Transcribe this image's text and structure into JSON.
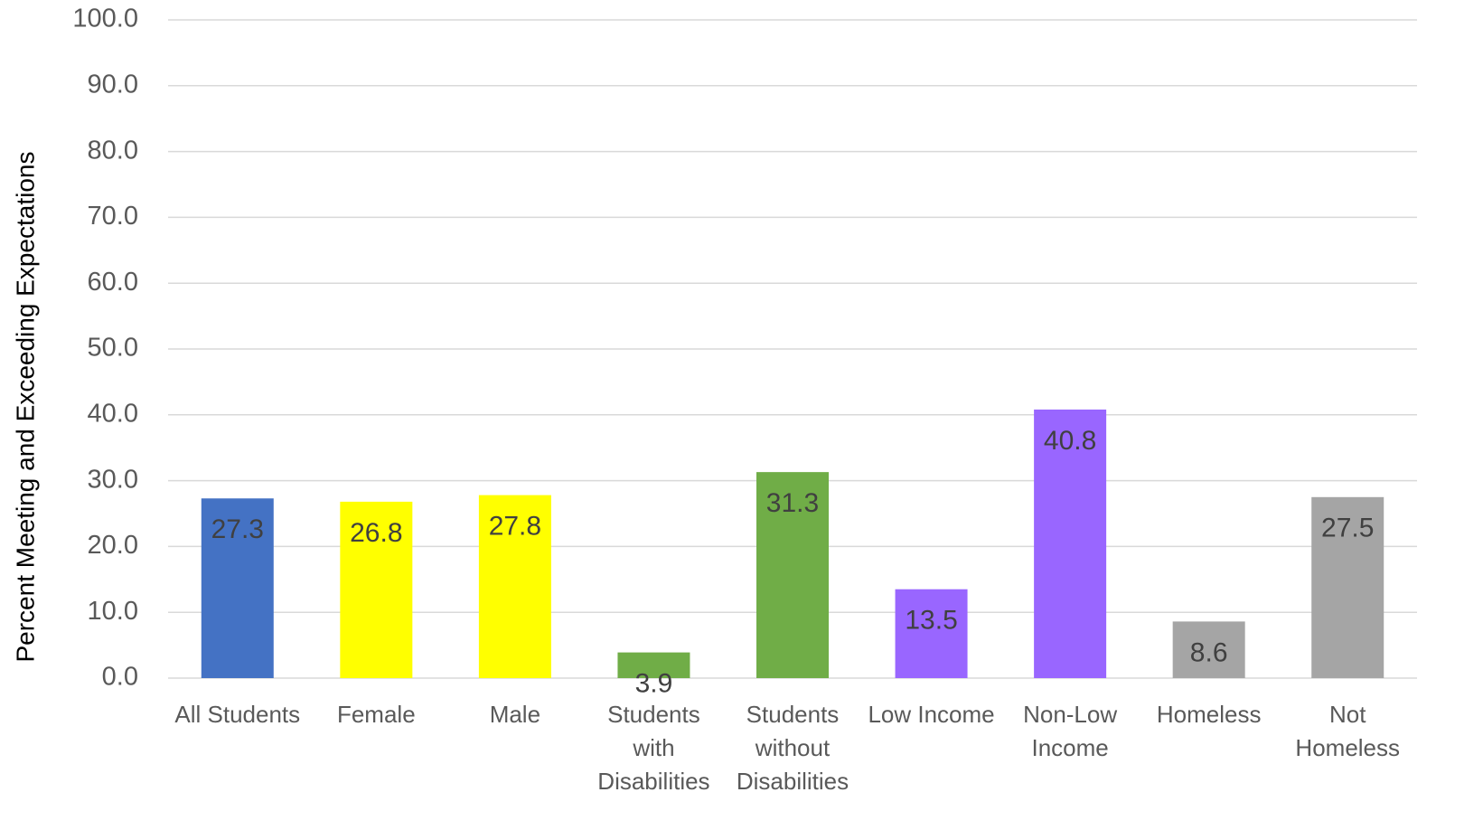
{
  "chart_data": {
    "type": "bar",
    "y_axis_label": "Percent Meeting and Exceeding  Expectations",
    "categories": [
      "All Students",
      "Female",
      "Male",
      "Students with Disabilities",
      "Students without Disabilities",
      "Low Income",
      "Non-Low Income",
      "Homeless",
      "Not Homeless"
    ],
    "values": [
      27.3,
      26.8,
      27.8,
      3.9,
      31.3,
      13.5,
      40.8,
      8.6,
      27.5
    ],
    "colors": [
      "#4472c4",
      "#ffff00",
      "#ffff00",
      "#70ad47",
      "#70ad47",
      "#9966ff",
      "#9966ff",
      "#a5a5a5",
      "#a5a5a5"
    ],
    "ylim": [
      0,
      100
    ],
    "yticks": [
      {
        "value": 0,
        "label": "0.0"
      },
      {
        "value": 10,
        "label": "10.0"
      },
      {
        "value": 20,
        "label": "20.0"
      },
      {
        "value": 30,
        "label": "30.0"
      },
      {
        "value": 40,
        "label": "40.0"
      },
      {
        "value": 50,
        "label": "50.0"
      },
      {
        "value": 60,
        "label": "60.0"
      },
      {
        "value": 70,
        "label": "70.0"
      },
      {
        "value": 80,
        "label": "80.0"
      },
      {
        "value": 90,
        "label": "90.0"
      },
      {
        "value": 100,
        "label": "100.0"
      }
    ],
    "grid": true
  }
}
